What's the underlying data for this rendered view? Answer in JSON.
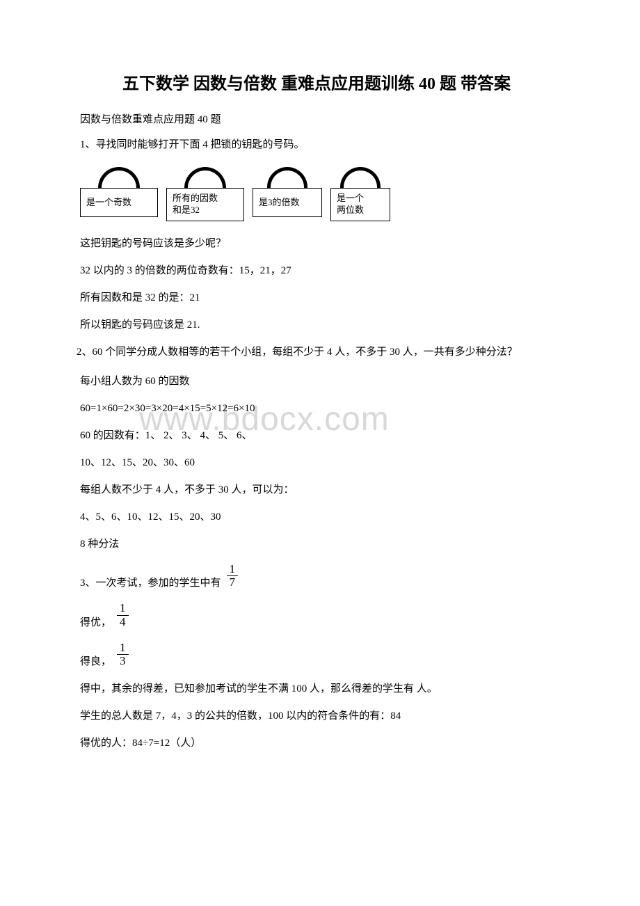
{
  "title": "五下数学 因数与倍数 重难点应用题训练 40 题 带答案",
  "subtitle": "因数与倍数重难点应用题 40 题",
  "q1": {
    "prompt": "1、寻找同时能够打开下面 4 把锁的钥匙的号码。",
    "locks": [
      "是一个奇数",
      "所有的因数\n和是32",
      "是3的倍数",
      "是一个\n两位数"
    ],
    "line1": "这把钥匙的号码应该是多少呢？",
    "line2": "32 以内的 3 的倍数的两位奇数有：15，21，27",
    "line3": "所有因数和是 32 的是：21",
    "line4": "所以钥匙的号码应该是 21."
  },
  "q2": {
    "prompt": "2、60 个同学分成人数相等的若干个小组，每组不少于 4 人，不多于 30 人，一共有多少种分法？",
    "line1": "每小组人数为 60 的因数",
    "line2": "60=1×60=2×30=3×20=4×15=5×12=6×10",
    "line3": "60 的因数有：1、 2、 3、 4、 5、 6、",
    "line4": " 10、12、15、20、30、60",
    "line5": "每组人数不少于 4 人，不多于 30 人，可以为：",
    "line6": " 4、5、6、10、12、15、20、30",
    "line7": "8 种分法"
  },
  "q3": {
    "prompt_pre": "3、一次考试，参加的学生中有",
    "frac1_num": "1",
    "frac1_den": "7",
    "line2_pre": "得优，",
    "frac2_num": "1",
    "frac2_den": "4",
    "line3_pre": "得良，",
    "frac3_num": "1",
    "frac3_den": "3",
    "line4": "得中，其余的得差，已知参加考试的学生不满 100 人，那么得差的学生有 人。",
    "line5": "学生的总人数是 7，4，3 的公共的倍数，100 以内的符合条件的有：84",
    "line6": "得优的人：84÷7=12（人）"
  },
  "watermark": "www.bdocx.com",
  "colors": {
    "text": "#000000",
    "background": "#ffffff",
    "watermark": "#d8d8d8"
  }
}
